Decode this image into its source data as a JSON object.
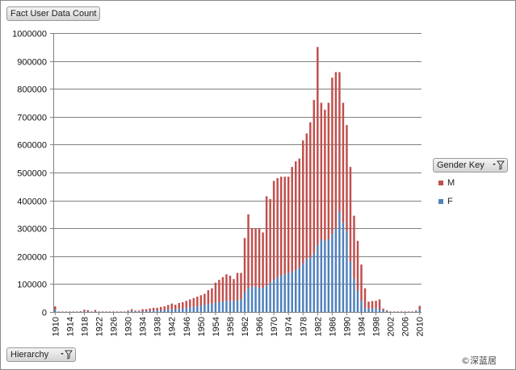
{
  "chart_title_button": "Fact User Data Count",
  "hierarchy_button": "Hierarchy",
  "legend_title": "Gender Key",
  "copyright": "©深蓝居",
  "colors": {
    "M": "#c0504d",
    "F": "#4f81bd",
    "grid": "#808080",
    "axis": "#808080"
  },
  "icons": {
    "filter": "filter-dropdown-icon"
  },
  "chart_data": {
    "type": "bar",
    "stacked": true,
    "title": "",
    "xlabel": "",
    "ylabel": "",
    "ylim": [
      0,
      1000000
    ],
    "yticks": [
      0,
      100000,
      200000,
      300000,
      400000,
      500000,
      600000,
      700000,
      800000,
      900000,
      1000000
    ],
    "grid": true,
    "legend_placement": "right",
    "x_tick_labels": [
      "1910",
      "1914",
      "1918",
      "1922",
      "1926",
      "1930",
      "1934",
      "1938",
      "1942",
      "1946",
      "1950",
      "1954",
      "1958",
      "1962",
      "1966",
      "1970",
      "1974",
      "1978",
      "1982",
      "1986",
      "1990",
      "1994",
      "1998",
      "2002",
      "2006",
      "2010"
    ],
    "categories": [
      1910,
      1911,
      1912,
      1913,
      1914,
      1915,
      1916,
      1917,
      1918,
      1919,
      1920,
      1921,
      1922,
      1923,
      1924,
      1925,
      1926,
      1927,
      1928,
      1929,
      1930,
      1931,
      1932,
      1933,
      1934,
      1935,
      1936,
      1937,
      1938,
      1939,
      1940,
      1941,
      1942,
      1943,
      1944,
      1945,
      1946,
      1947,
      1948,
      1949,
      1950,
      1951,
      1952,
      1953,
      1954,
      1955,
      1956,
      1957,
      1958,
      1959,
      1960,
      1961,
      1962,
      1963,
      1964,
      1965,
      1966,
      1967,
      1968,
      1969,
      1970,
      1971,
      1972,
      1973,
      1974,
      1975,
      1976,
      1977,
      1978,
      1979,
      1980,
      1981,
      1982,
      1983,
      1984,
      1985,
      1986,
      1987,
      1988,
      1989,
      1990,
      1991,
      1992,
      1993,
      1994,
      1995,
      1996,
      1997,
      1998,
      1999,
      2000,
      2001,
      2002,
      2003,
      2004,
      2005,
      2006,
      2007,
      2008,
      2009,
      2010
    ],
    "series": [
      {
        "name": "F",
        "values": [
          8000,
          1000,
          1000,
          1000,
          1000,
          1000,
          1000,
          1000,
          2000,
          3000,
          1000,
          2000,
          1000,
          1000,
          1000,
          1000,
          1000,
          1000,
          1000,
          1000,
          2000,
          4000,
          2000,
          2000,
          3000,
          3000,
          4000,
          5000,
          5000,
          6000,
          7000,
          9000,
          10000,
          9000,
          11000,
          13000,
          14000,
          17000,
          18000,
          20000,
          23000,
          26000,
          28000,
          30000,
          33000,
          36000,
          38000,
          40000,
          40000,
          38000,
          42000,
          45000,
          70000,
          85000,
          90000,
          90000,
          88000,
          85000,
          95000,
          105000,
          115000,
          125000,
          130000,
          135000,
          140000,
          145000,
          150000,
          160000,
          175000,
          190000,
          195000,
          210000,
          240000,
          260000,
          255000,
          260000,
          280000,
          300000,
          360000,
          320000,
          290000,
          180000,
          120000,
          75000,
          40000,
          15000,
          12000,
          12000,
          14000,
          10000,
          6000,
          3000,
          1000,
          1000,
          1000,
          1000,
          1000,
          1000,
          1000,
          2000,
          8000
        ]
      },
      {
        "name": "M",
        "values": [
          12000,
          1000,
          1000,
          1000,
          1000,
          1000,
          1000,
          2000,
          6000,
          4000,
          1000,
          5000,
          1000,
          1000,
          1000,
          1000,
          1000,
          1000,
          1000,
          1000,
          3000,
          6000,
          3000,
          3000,
          7000,
          7000,
          9000,
          10000,
          10000,
          12000,
          13000,
          16000,
          20000,
          17000,
          21000,
          22000,
          26000,
          28000,
          32000,
          35000,
          37000,
          39000,
          50000,
          55000,
          72000,
          79000,
          87000,
          95000,
          90000,
          80000,
          98000,
          95000,
          195000,
          265000,
          210000,
          210000,
          212000,
          200000,
          320000,
          300000,
          355000,
          355000,
          355000,
          350000,
          345000,
          375000,
          390000,
          390000,
          440000,
          450000,
          485000,
          550000,
          710000,
          490000,
          470000,
          490000,
          560000,
          560000,
          500000,
          430000,
          380000,
          340000,
          225000,
          180000,
          130000,
          70000,
          25000,
          27000,
          26000,
          35000,
          6000,
          3000,
          1000,
          1000,
          1000,
          1000,
          1000,
          1000,
          1000,
          3000,
          14000
        ]
      }
    ]
  }
}
